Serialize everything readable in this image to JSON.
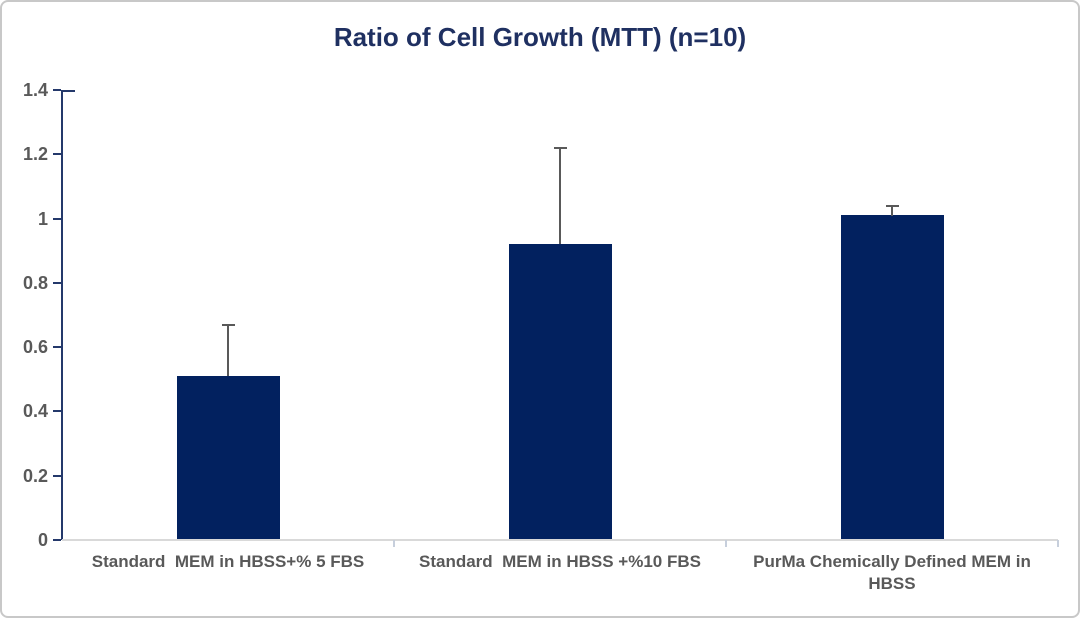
{
  "chart_data": {
    "type": "bar",
    "title": "Ratio of Cell Growth (MTT) (n=10)",
    "categories": [
      "Standard  MEM in HBSS+% 5 FBS",
      "Standard  MEM in HBSS +%10 FBS",
      "PurMa Chemically Defined MEM in HBSS"
    ],
    "values": [
      0.51,
      0.92,
      1.01
    ],
    "error_upper": [
      0.16,
      0.3,
      0.03
    ],
    "xlabel": "",
    "ylabel": "",
    "ylim": [
      0,
      1.4
    ],
    "yticks": [
      0,
      0.2,
      0.4,
      0.6,
      0.8,
      1,
      1.2,
      1.4
    ],
    "ytick_labels": [
      "0",
      "0.2",
      "0.4",
      "0.6",
      "0.8",
      "1",
      "1.2",
      "1.4"
    ],
    "grid": false,
    "legend": "none",
    "colors": {
      "bar_fill": "#02215f",
      "title_text": "#1f3061",
      "axis_text": "#595959",
      "error_bar": "#595959",
      "y_axis_line": "#24396b",
      "x_axis_line": "#d9d9d9",
      "x_tick": "#c7cfdc",
      "card_border": "#c8c8c8",
      "background": "#ffffff"
    }
  }
}
